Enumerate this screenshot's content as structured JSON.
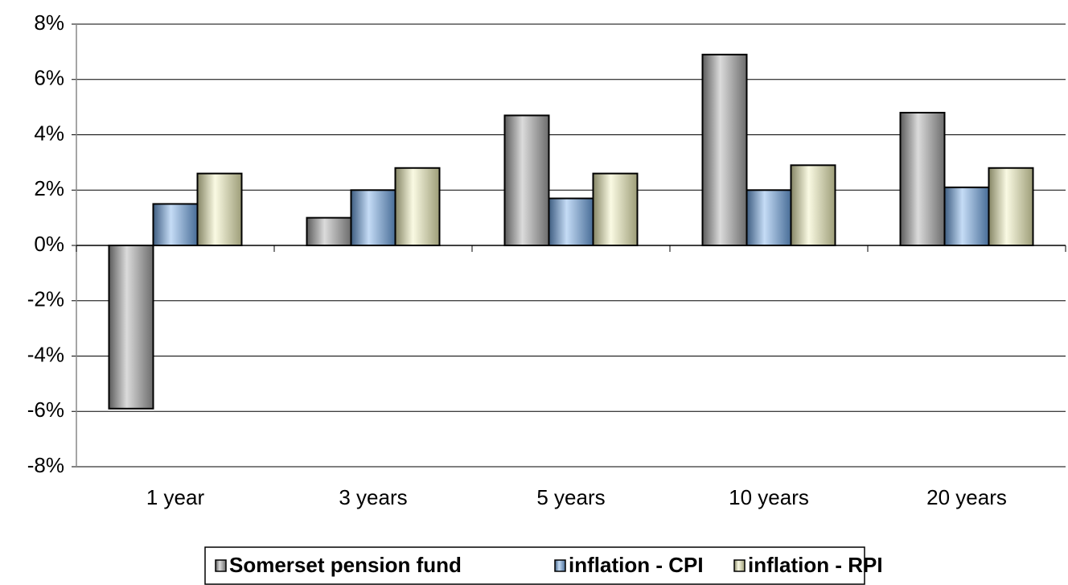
{
  "chart_data": {
    "type": "bar",
    "categories": [
      "1 year",
      "3 years",
      "5 years",
      "10 years",
      "20 years"
    ],
    "series": [
      {
        "name": "Somerset pension fund",
        "color": "#a6a6a6",
        "values": [
          -5.9,
          1.0,
          4.7,
          6.9,
          4.8
        ]
      },
      {
        "name": "inflation - CPI",
        "color": "#6fa8e8",
        "values": [
          1.5,
          2.0,
          1.7,
          2.0,
          2.1
        ]
      },
      {
        "name": "inflation - RPI",
        "color": "#f2f2b8",
        "values": [
          2.6,
          2.8,
          2.6,
          2.9,
          2.8
        ]
      }
    ],
    "ylim": [
      -8,
      8
    ],
    "yticks": [
      {
        "value": -8,
        "label": "-8%"
      },
      {
        "value": -6,
        "label": "-6%"
      },
      {
        "value": -4,
        "label": "-4%"
      },
      {
        "value": -2,
        "label": "-2%"
      },
      {
        "value": 0,
        "label": "0%"
      },
      {
        "value": 2,
        "label": "2%"
      },
      {
        "value": 4,
        "label": "4%"
      },
      {
        "value": 6,
        "label": "6%"
      },
      {
        "value": 8,
        "label": "8%"
      }
    ],
    "grid": true,
    "legend": "bottom"
  }
}
